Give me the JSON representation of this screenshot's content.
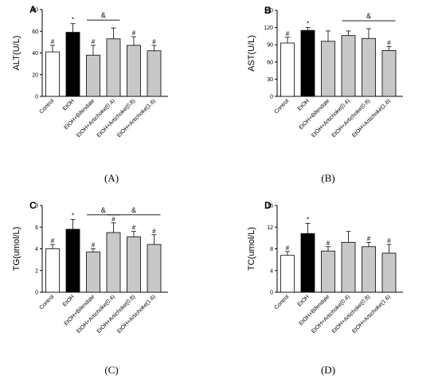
{
  "figure": {
    "captions": [
      "(A)",
      "(B)",
      "(C)",
      "(D)"
    ]
  },
  "colors": {
    "control": "#ffffff",
    "etoh": "#000000",
    "treated": "#c8c8c8",
    "outline": "#000000"
  },
  "chart_data": [
    {
      "type": "bar",
      "panel_label": "A",
      "ylabel": "ALT(U/L)",
      "ylim": [
        0,
        80
      ],
      "yticks": [
        0,
        20,
        40,
        60,
        80
      ],
      "categories": [
        "Control",
        "EtOH",
        "EtOH+Bifendate",
        "EtOH+Artichoke(0.4)",
        "EtOH+Artichoke(0.8)",
        "EtOH+Artichoke(1.6)"
      ],
      "values": [
        41,
        59,
        38,
        53,
        47,
        42
      ],
      "errors": [
        6,
        8,
        9,
        10,
        8,
        5
      ],
      "markers": [
        "#",
        "*",
        "#",
        "",
        "#",
        "#"
      ],
      "brackets": [
        {
          "label": "&",
          "from": 2,
          "to": 3
        }
      ]
    },
    {
      "type": "bar",
      "panel_label": "B",
      "ylabel": "AST(U/L)",
      "ylim": [
        0,
        150
      ],
      "yticks": [
        0,
        30,
        60,
        90,
        120,
        150
      ],
      "categories": [
        "Control",
        "EtOH",
        "EtOH+Bifendate",
        "EtOH+Artichoke(0.4)",
        "EtOH+Artichoke(0.8)",
        "EtOH+Artichoke(1.6)"
      ],
      "values": [
        93,
        115,
        96,
        106,
        101,
        80
      ],
      "errors": [
        10,
        5,
        18,
        8,
        17,
        7
      ],
      "markers": [
        "#",
        "*",
        "",
        "",
        "",
        "#"
      ],
      "brackets": [
        {
          "label": "&",
          "from": 3,
          "to": 5
        }
      ]
    },
    {
      "type": "bar",
      "panel_label": "C",
      "ylabel": "TG(umol/L)",
      "ylim": [
        0,
        8
      ],
      "yticks": [
        0,
        2,
        4,
        6,
        8
      ],
      "categories": [
        "Control",
        "EtOH",
        "EtOH+Bifendate",
        "EtOH+Artichoke(0.4)",
        "EtOH+Artichoke(0.8)",
        "EtOH+Artichoke(1.6)"
      ],
      "values": [
        4.0,
        5.8,
        3.7,
        5.5,
        5.1,
        4.4
      ],
      "errors": [
        0.4,
        0.9,
        0.3,
        0.9,
        0.5,
        0.9
      ],
      "markers": [
        "#",
        "*",
        "#",
        "#",
        "#",
        "#"
      ],
      "brackets": [
        {
          "label": "&",
          "from": 2,
          "to": 3
        },
        {
          "label": "&",
          "from": 3,
          "to": 5
        }
      ]
    },
    {
      "type": "bar",
      "panel_label": "D",
      "ylabel": "TC(umol/L)",
      "ylim": [
        0,
        16
      ],
      "yticks": [
        0,
        4,
        8,
        12,
        16
      ],
      "categories": [
        "Control",
        "EtOH",
        "EtOH+Bifendate",
        "EtOH+Artichoke(0.4)",
        "EtOH+Artichoke(0.8)",
        "EtOH+Artichoke(1.6)"
      ],
      "values": [
        6.8,
        10.8,
        7.6,
        9.2,
        8.4,
        7.2
      ],
      "errors": [
        0.7,
        1.9,
        0.8,
        2.0,
        0.8,
        1.6
      ],
      "markers": [
        "#",
        "*",
        "#",
        "",
        "#",
        "#"
      ],
      "brackets": []
    }
  ]
}
